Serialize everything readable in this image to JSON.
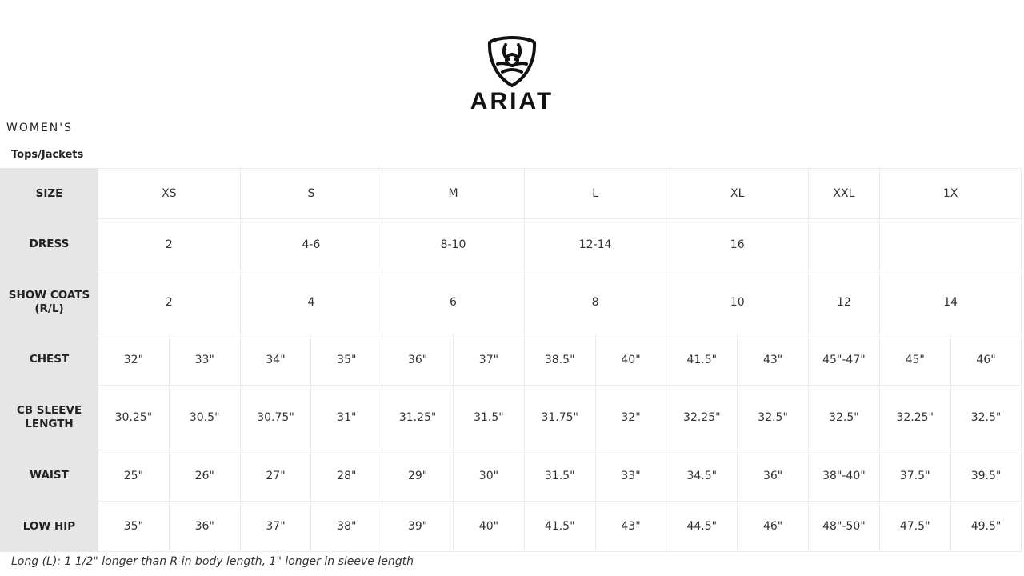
{
  "brand": {
    "name": "ARIAT"
  },
  "section_title": "WOMEN'S",
  "subtitle": "Tops/Jackets",
  "table": {
    "rows": [
      {
        "label": "SIZE",
        "cells": [
          [
            "XS",
            2
          ],
          [
            "S",
            2
          ],
          [
            "M",
            2
          ],
          [
            "L",
            2
          ],
          [
            "XL",
            2
          ],
          [
            "XXL",
            1
          ],
          [
            "1X",
            2
          ]
        ]
      },
      {
        "label": "DRESS",
        "cells": [
          [
            "2",
            2
          ],
          [
            "4-6",
            2
          ],
          [
            "8-10",
            2
          ],
          [
            "12-14",
            2
          ],
          [
            "16",
            2
          ],
          [
            "",
            1
          ],
          [
            "",
            2
          ]
        ]
      },
      {
        "label": "SHOW COATS (R/L)",
        "cells": [
          [
            "2",
            2
          ],
          [
            "4",
            2
          ],
          [
            "6",
            2
          ],
          [
            "8",
            2
          ],
          [
            "10",
            2
          ],
          [
            "12",
            1
          ],
          [
            "14",
            2
          ]
        ]
      },
      {
        "label": "CHEST",
        "cells": [
          [
            "32\"",
            1
          ],
          [
            "33\"",
            1
          ],
          [
            "34\"",
            1
          ],
          [
            "35\"",
            1
          ],
          [
            "36\"",
            1
          ],
          [
            "37\"",
            1
          ],
          [
            "38.5\"",
            1
          ],
          [
            "40\"",
            1
          ],
          [
            "41.5\"",
            1
          ],
          [
            "43\"",
            1
          ],
          [
            "45\"-47\"",
            1
          ],
          [
            "45\"",
            1
          ],
          [
            "46\"",
            1
          ]
        ]
      },
      {
        "label": "CB SLEEVE LENGTH",
        "cells": [
          [
            "30.25\"",
            1
          ],
          [
            "30.5\"",
            1
          ],
          [
            "30.75\"",
            1
          ],
          [
            "31\"",
            1
          ],
          [
            "31.25\"",
            1
          ],
          [
            "31.5\"",
            1
          ],
          [
            "31.75\"",
            1
          ],
          [
            "32\"",
            1
          ],
          [
            "32.25\"",
            1
          ],
          [
            "32.5\"",
            1
          ],
          [
            "32.5\"",
            1
          ],
          [
            "32.25\"",
            1
          ],
          [
            "32.5\"",
            1
          ]
        ]
      },
      {
        "label": "WAIST",
        "cells": [
          [
            "25\"",
            1
          ],
          [
            "26\"",
            1
          ],
          [
            "27\"",
            1
          ],
          [
            "28\"",
            1
          ],
          [
            "29\"",
            1
          ],
          [
            "30\"",
            1
          ],
          [
            "31.5\"",
            1
          ],
          [
            "33\"",
            1
          ],
          [
            "34.5\"",
            1
          ],
          [
            "36\"",
            1
          ],
          [
            "38\"-40\"",
            1
          ],
          [
            "37.5\"",
            1
          ],
          [
            "39.5\"",
            1
          ]
        ]
      },
      {
        "label": "LOW HIP",
        "cells": [
          [
            "35\"",
            1
          ],
          [
            "36\"",
            1
          ],
          [
            "37\"",
            1
          ],
          [
            "38\"",
            1
          ],
          [
            "39\"",
            1
          ],
          [
            "40\"",
            1
          ],
          [
            "41.5\"",
            1
          ],
          [
            "43\"",
            1
          ],
          [
            "44.5\"",
            1
          ],
          [
            "46\"",
            1
          ],
          [
            "48\"-50\"",
            1
          ],
          [
            "47.5\"",
            1
          ],
          [
            "49.5\"",
            1
          ]
        ]
      }
    ]
  },
  "footnote": "Long (L): 1 1/2\" longer than R in body length, 1\" longer in sleeve length"
}
